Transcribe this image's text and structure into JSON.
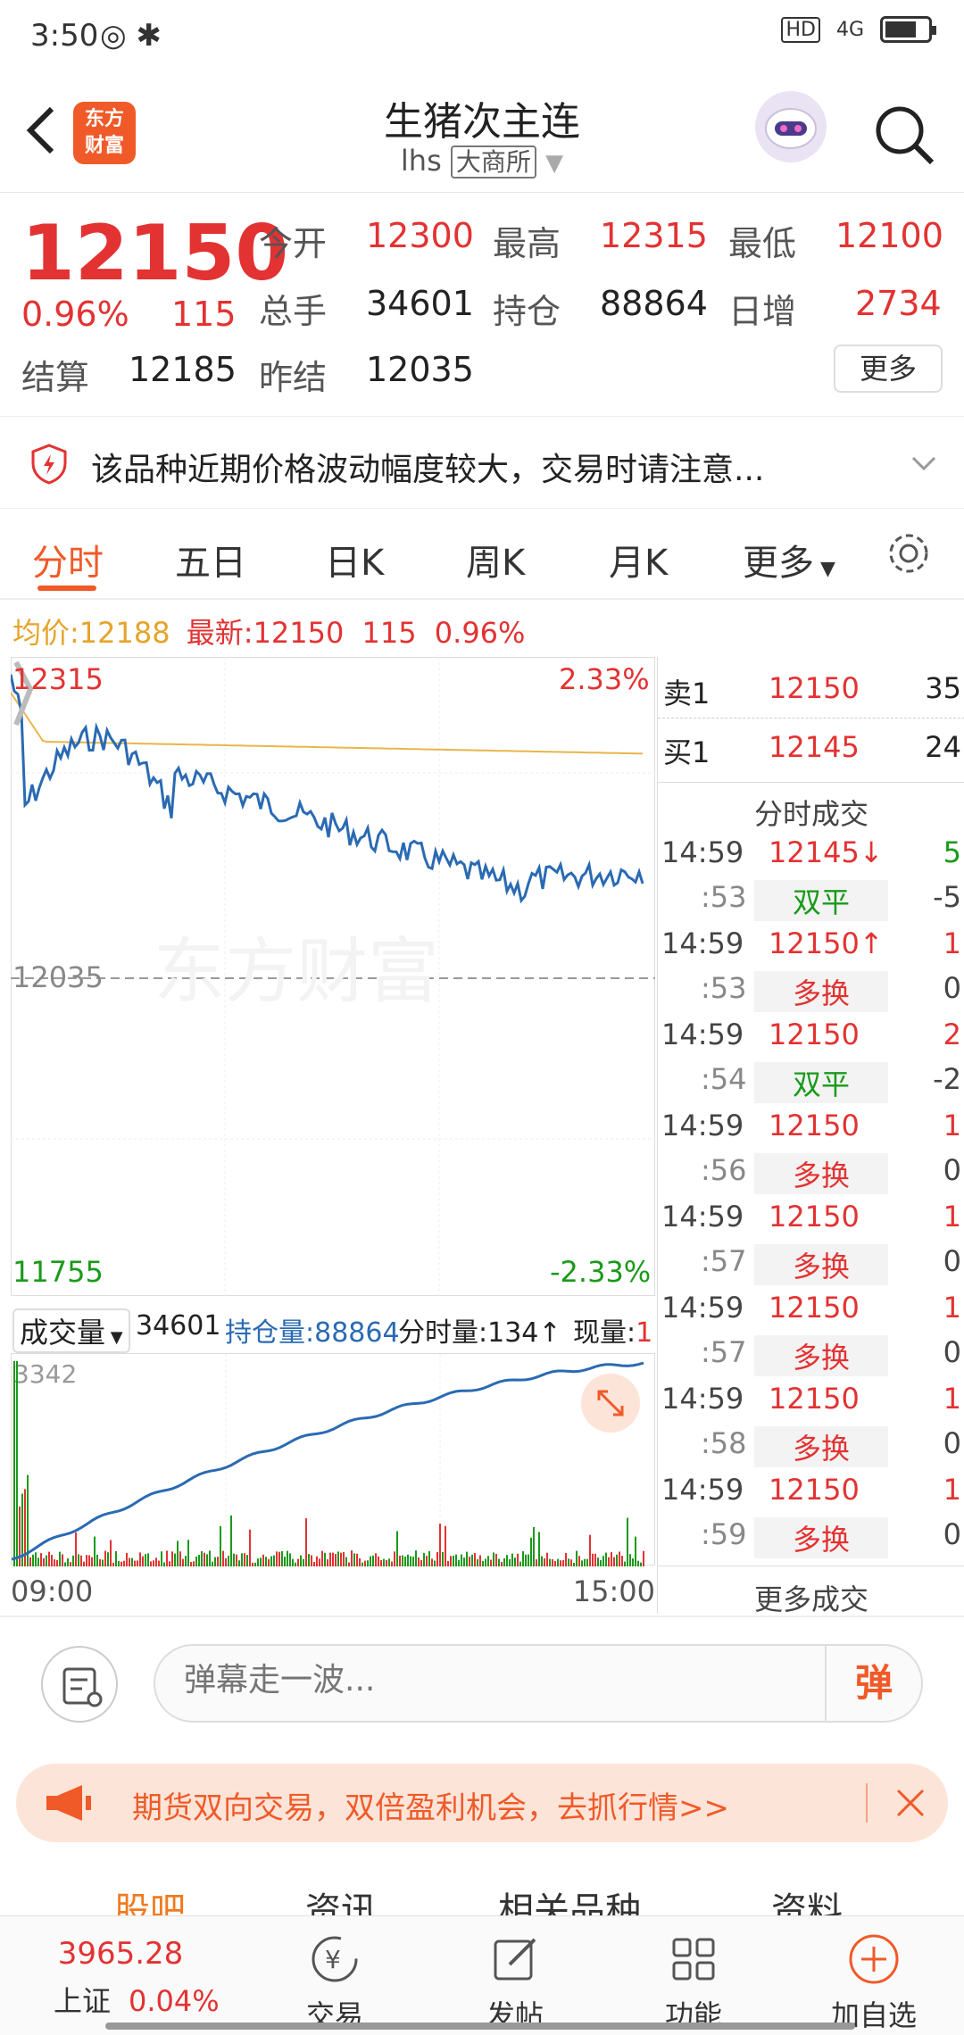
{
  "status": {
    "time": "3:50",
    "hd": "HD",
    "net": "4G"
  },
  "header": {
    "title": "生猪次主连",
    "code": "lhs",
    "exchange": "大商所",
    "logo_line1": "东方",
    "logo_line2": "财富"
  },
  "quote": {
    "price": "12150",
    "pct": "0.96%",
    "chg": "115",
    "open_label": "今开",
    "open": "12300",
    "high_label": "最高",
    "high": "12315",
    "low_label": "最低",
    "low": "12100",
    "vol_label": "总手",
    "vol": "34601",
    "oi_label": "持仓",
    "oi": "88864",
    "inc_label": "日增",
    "inc": "2734",
    "settle_label": "结算",
    "settle": "12185",
    "prev_label": "昨结",
    "prev": "12035",
    "more": "更多"
  },
  "warning": "该品种近期价格波动幅度较大，交易时请注意...",
  "tabs": [
    "分时",
    "五日",
    "日K",
    "周K",
    "月K",
    "更多"
  ],
  "info": {
    "avg_label": "均价:",
    "avg": "12188",
    "latest_label": "最新:",
    "latest": "12150",
    "chg": "115",
    "pct": "0.96%"
  },
  "chart": {
    "top": "12315",
    "top_pct": "2.33%",
    "mid": "12035",
    "bottom": "11755",
    "bottom_pct": "-2.33%",
    "watermark": "东方财富"
  },
  "volume": {
    "label": "成交量",
    "vol": "34601",
    "oi_label": "持仓量:",
    "oi": "88864",
    "tick_label": "分时量:",
    "tick": "134",
    "now_label": "现量:",
    "now": "1",
    "max": "3342"
  },
  "timeaxis": {
    "start": "09:00",
    "end": "15:00"
  },
  "book": {
    "sell_label": "卖1",
    "sell_price": "12150",
    "sell_qty": "35",
    "buy_label": "买1",
    "buy_price": "12145",
    "buy_qty": "24",
    "ticks_title": "分时成交",
    "ticks": [
      {
        "time": "14:59",
        "price": "12145↓",
        "qty": "5",
        "sec": ":53",
        "type": "双平",
        "oi": "-5",
        "pc": "red",
        "qc": "green",
        "tc": "green",
        "oc": "gray"
      },
      {
        "time": "14:59",
        "price": "12150↑",
        "qty": "1",
        "sec": ":53",
        "type": "多换",
        "oi": "0",
        "pc": "red",
        "qc": "red",
        "tc": "red",
        "oc": "gray"
      },
      {
        "time": "14:59",
        "price": "12150",
        "qty": "2",
        "sec": ":54",
        "type": "双平",
        "oi": "-2",
        "pc": "red",
        "qc": "red",
        "tc": "green",
        "oc": "gray"
      },
      {
        "time": "14:59",
        "price": "12150",
        "qty": "1",
        "sec": ":56",
        "type": "多换",
        "oi": "0",
        "pc": "red",
        "qc": "red",
        "tc": "red",
        "oc": "gray"
      },
      {
        "time": "14:59",
        "price": "12150",
        "qty": "1",
        "sec": ":57",
        "type": "多换",
        "oi": "0",
        "pc": "red",
        "qc": "red",
        "tc": "red",
        "oc": "gray"
      },
      {
        "time": "14:59",
        "price": "12150",
        "qty": "1",
        "sec": ":57",
        "type": "多换",
        "oi": "0",
        "pc": "red",
        "qc": "red",
        "tc": "red",
        "oc": "gray"
      },
      {
        "time": "14:59",
        "price": "12150",
        "qty": "1",
        "sec": ":58",
        "type": "多换",
        "oi": "0",
        "pc": "red",
        "qc": "red",
        "tc": "red",
        "oc": "gray"
      },
      {
        "time": "14:59",
        "price": "12150",
        "qty": "1",
        "sec": ":59",
        "type": "多换",
        "oi": "0",
        "pc": "red",
        "qc": "red",
        "tc": "red",
        "oc": "gray"
      }
    ],
    "more": "更多成交"
  },
  "danmu": {
    "placeholder": "弹幕走一波...",
    "btn": "弹"
  },
  "promo": "期货双向交易，双倍盈利机会，去抓行情>>",
  "subtabs": [
    "股吧",
    "资讯",
    "相关品种",
    "资料"
  ],
  "nav": {
    "index_value": "3965.28",
    "index_name": "上证",
    "index_pct": "0.04%",
    "trade": "交易",
    "post": "发帖",
    "func": "功能",
    "add": "加自选"
  },
  "colors": {
    "up": "#e33232",
    "down": "#1a9a1a",
    "accent": "#f05a28",
    "avg": "#e5a42a",
    "line": "#2a6ab3"
  }
}
